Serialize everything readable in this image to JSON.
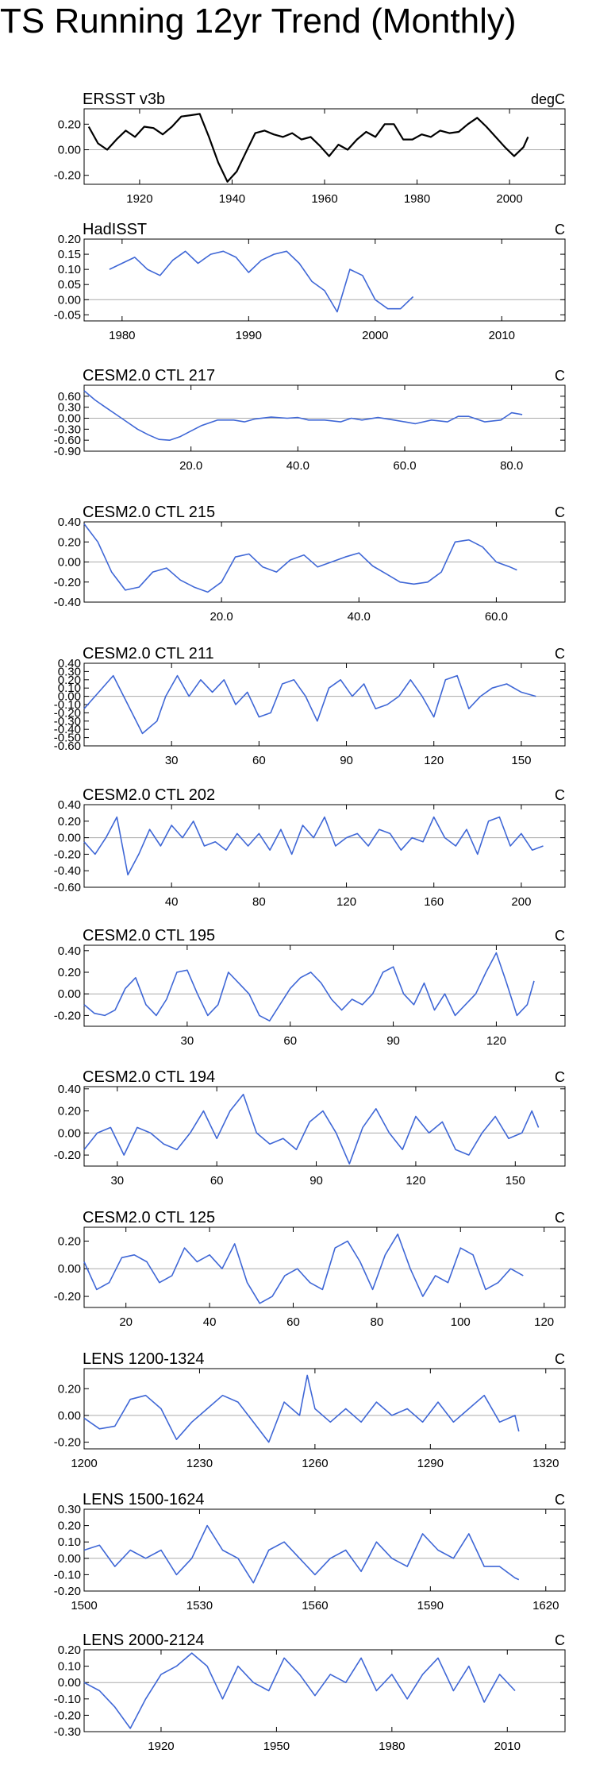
{
  "page_title": "TS Running 12yr Trend (Monthly)",
  "colors": {
    "first_series": "#000000",
    "model_series": "#3f67d6",
    "zero_line": "#aaaaaa",
    "axis": "#000000"
  },
  "chart_data": [
    {
      "type": "line",
      "title": "ERSST v3b",
      "units": "degC",
      "xlim": [
        1908,
        2012
      ],
      "ylim": [
        -0.27,
        0.32
      ],
      "xticks": [
        1920,
        1940,
        1960,
        1980,
        2000
      ],
      "xtick_labels": [
        "1920",
        "1940",
        "1960",
        "1980",
        "2000"
      ],
      "yticks": [
        0.2,
        0,
        -0.2
      ],
      "ytick_labels": [
        "0.20",
        "0.00",
        "-0.20"
      ],
      "color": "#000000",
      "x": [
        1909,
        1911,
        1913,
        1915,
        1917,
        1919,
        1921,
        1923,
        1925,
        1927,
        1929,
        1931,
        1933,
        1935,
        1937,
        1939,
        1941,
        1943,
        1945,
        1947,
        1949,
        1951,
        1953,
        1955,
        1957,
        1959,
        1961,
        1963,
        1965,
        1967,
        1969,
        1971,
        1973,
        1975,
        1977,
        1979,
        1981,
        1983,
        1985,
        1987,
        1989,
        1991,
        1993,
        1995,
        1997,
        1999,
        2001,
        2003,
        2004
      ],
      "y": [
        0.18,
        0.05,
        0.0,
        0.08,
        0.15,
        0.1,
        0.18,
        0.17,
        0.12,
        0.18,
        0.26,
        0.27,
        0.28,
        0.1,
        -0.1,
        -0.25,
        -0.17,
        -0.02,
        0.13,
        0.15,
        0.12,
        0.1,
        0.13,
        0.08,
        0.1,
        0.03,
        -0.05,
        0.04,
        0.0,
        0.08,
        0.14,
        0.1,
        0.2,
        0.2,
        0.08,
        0.08,
        0.12,
        0.1,
        0.15,
        0.13,
        0.14,
        0.2,
        0.25,
        0.18,
        0.1,
        0.02,
        -0.05,
        0.02,
        0.1
      ]
    },
    {
      "type": "line",
      "title": "HadISST",
      "units": "C",
      "xlim": [
        1977,
        2015
      ],
      "ylim": [
        -0.07,
        0.2
      ],
      "xticks": [
        1980,
        1990,
        2000,
        2010
      ],
      "xtick_labels": [
        "1980",
        "1990",
        "2000",
        "2010"
      ],
      "yticks": [
        0.2,
        0.15,
        0.1,
        0.05,
        0,
        -0.05
      ],
      "ytick_labels": [
        "0.20",
        "0.15",
        "0.10",
        "0.05",
        "0.00",
        "-0.05"
      ],
      "color": "#3f67d6",
      "x": [
        1979,
        1980,
        1981,
        1982,
        1983,
        1984,
        1985,
        1986,
        1987,
        1988,
        1989,
        1990,
        1991,
        1992,
        1993,
        1994,
        1995,
        1996,
        1997,
        1998,
        1999,
        2000,
        2001,
        2002,
        2003
      ],
      "y": [
        0.1,
        0.12,
        0.14,
        0.1,
        0.08,
        0.13,
        0.16,
        0.12,
        0.15,
        0.16,
        0.14,
        0.09,
        0.13,
        0.15,
        0.16,
        0.12,
        0.06,
        0.03,
        -0.04,
        0.1,
        0.08,
        0.0,
        -0.03,
        -0.03,
        0.01
      ]
    },
    {
      "type": "line",
      "title": "CESM2.0 CTL 217",
      "units": "C",
      "xlim": [
        0,
        90
      ],
      "ylim": [
        -0.9,
        0.9
      ],
      "xticks": [
        20,
        40,
        60,
        80
      ],
      "xtick_labels": [
        "20.0",
        "40.0",
        "60.0",
        "80.0"
      ],
      "yticks": [
        0.6,
        0.3,
        0,
        -0.3,
        -0.6,
        -0.9
      ],
      "ytick_labels": [
        "0.60",
        "0.30",
        "0.00",
        "-0.30",
        "-0.60",
        "-0.90"
      ],
      "color": "#3f67d6",
      "x": [
        0,
        2,
        4,
        6,
        8,
        10,
        12,
        14,
        16,
        18,
        20,
        22,
        25,
        28,
        30,
        32,
        35,
        38,
        40,
        42,
        45,
        48,
        50,
        52,
        55,
        58,
        60,
        62,
        65,
        68,
        70,
        72,
        75,
        78,
        80,
        82
      ],
      "y": [
        0.75,
        0.5,
        0.3,
        0.1,
        -0.1,
        -0.3,
        -0.45,
        -0.58,
        -0.6,
        -0.5,
        -0.35,
        -0.2,
        -0.05,
        -0.05,
        -0.1,
        -0.02,
        0.03,
        0.0,
        0.02,
        -0.05,
        -0.05,
        -0.1,
        0.0,
        -0.05,
        0.02,
        -0.05,
        -0.1,
        -0.15,
        -0.05,
        -0.1,
        0.05,
        0.05,
        -0.1,
        -0.05,
        0.15,
        0.1
      ]
    },
    {
      "type": "line",
      "title": "CESM2.0 CTL 215",
      "units": "C",
      "xlim": [
        0,
        70
      ],
      "ylim": [
        -0.4,
        0.4
      ],
      "xticks": [
        20,
        40,
        60
      ],
      "xtick_labels": [
        "20.0",
        "40.0",
        "60.0"
      ],
      "yticks": [
        0.4,
        0.2,
        0,
        -0.2,
        -0.4
      ],
      "ytick_labels": [
        "0.40",
        "0.20",
        "0.00",
        "-0.20",
        "-0.40"
      ],
      "color": "#3f67d6",
      "x": [
        0,
        2,
        4,
        6,
        8,
        10,
        12,
        14,
        16,
        18,
        20,
        22,
        24,
        26,
        28,
        30,
        32,
        34,
        36,
        38,
        40,
        42,
        44,
        46,
        48,
        50,
        52,
        54,
        56,
        58,
        60,
        62,
        63
      ],
      "y": [
        0.38,
        0.2,
        -0.1,
        -0.28,
        -0.25,
        -0.1,
        -0.06,
        -0.18,
        -0.25,
        -0.3,
        -0.2,
        0.05,
        0.08,
        -0.05,
        -0.1,
        0.02,
        0.07,
        -0.05,
        0.0,
        0.05,
        0.09,
        -0.04,
        -0.12,
        -0.2,
        -0.22,
        -0.2,
        -0.1,
        0.2,
        0.22,
        0.15,
        0.0,
        -0.05,
        -0.08
      ]
    },
    {
      "type": "line",
      "title": "CESM2.0 CTL 211",
      "units": "C",
      "xlim": [
        0,
        165
      ],
      "ylim": [
        -0.6,
        0.4
      ],
      "xticks": [
        30,
        60,
        90,
        120,
        150
      ],
      "xtick_labels": [
        "30",
        "60",
        "90",
        "120",
        "150"
      ],
      "yticks": [
        0.4,
        0.3,
        0.2,
        0.1,
        0,
        -0.1,
        -0.2,
        -0.3,
        -0.4,
        -0.5,
        -0.6
      ],
      "ytick_labels": [
        "0.40",
        "0.30",
        "0.20",
        "0.10",
        "0.00",
        "-0.10",
        "-0.20",
        "-0.30",
        "-0.40",
        "-0.50",
        "-0.60"
      ],
      "color": "#3f67d6",
      "x": [
        0,
        5,
        10,
        15,
        20,
        25,
        28,
        32,
        36,
        40,
        44,
        48,
        52,
        56,
        60,
        64,
        68,
        72,
        76,
        80,
        84,
        88,
        92,
        96,
        100,
        104,
        108,
        112,
        116,
        120,
        124,
        128,
        132,
        136,
        140,
        145,
        150,
        155
      ],
      "y": [
        -0.15,
        0.05,
        0.25,
        -0.1,
        -0.45,
        -0.3,
        0.0,
        0.25,
        0.0,
        0.2,
        0.05,
        0.2,
        -0.1,
        0.05,
        -0.25,
        -0.2,
        0.15,
        0.2,
        0.0,
        -0.3,
        0.1,
        0.2,
        0.0,
        0.15,
        -0.15,
        -0.1,
        0.0,
        0.2,
        0.0,
        -0.25,
        0.2,
        0.25,
        -0.15,
        0.0,
        0.1,
        0.15,
        0.05,
        0.0
      ]
    },
    {
      "type": "line",
      "title": "CESM2.0 CTL 202",
      "units": "C",
      "xlim": [
        0,
        220
      ],
      "ylim": [
        -0.6,
        0.4
      ],
      "xticks": [
        40,
        80,
        120,
        160,
        200
      ],
      "xtick_labels": [
        "40",
        "80",
        "120",
        "160",
        "200"
      ],
      "yticks": [
        0.4,
        0.2,
        0,
        -0.2,
        -0.4,
        -0.6
      ],
      "ytick_labels": [
        "0.40",
        "0.20",
        "0.00",
        "-0.20",
        "-0.40",
        "-0.60"
      ],
      "color": "#3f67d6",
      "x": [
        0,
        5,
        10,
        15,
        20,
        25,
        30,
        35,
        40,
        45,
        50,
        55,
        60,
        65,
        70,
        75,
        80,
        85,
        90,
        95,
        100,
        105,
        110,
        115,
        120,
        125,
        130,
        135,
        140,
        145,
        150,
        155,
        160,
        165,
        170,
        175,
        180,
        185,
        190,
        195,
        200,
        205,
        210
      ],
      "y": [
        -0.05,
        -0.2,
        0.0,
        0.25,
        -0.45,
        -0.2,
        0.1,
        -0.1,
        0.15,
        0.0,
        0.2,
        -0.1,
        -0.05,
        -0.15,
        0.05,
        -0.1,
        0.05,
        -0.15,
        0.1,
        -0.2,
        0.15,
        0.0,
        0.25,
        -0.1,
        0.0,
        0.05,
        -0.1,
        0.1,
        0.05,
        -0.15,
        0.0,
        -0.05,
        0.25,
        0.0,
        -0.1,
        0.1,
        -0.2,
        0.2,
        0.25,
        -0.1,
        0.05,
        -0.15,
        -0.1
      ]
    },
    {
      "type": "line",
      "title": "CESM2.0 CTL 195",
      "units": "C",
      "xlim": [
        0,
        140
      ],
      "ylim": [
        -0.3,
        0.45
      ],
      "xticks": [
        30,
        60,
        90,
        120
      ],
      "xtick_labels": [
        "30",
        "60",
        "90",
        "120"
      ],
      "yticks": [
        0.4,
        0.2,
        0,
        -0.2
      ],
      "ytick_labels": [
        "0.40",
        "0.20",
        "0.00",
        "-0.20"
      ],
      "color": "#3f67d6",
      "x": [
        0,
        3,
        6,
        9,
        12,
        15,
        18,
        21,
        24,
        27,
        30,
        33,
        36,
        39,
        42,
        45,
        48,
        51,
        54,
        57,
        60,
        63,
        66,
        69,
        72,
        75,
        78,
        81,
        84,
        87,
        90,
        93,
        96,
        99,
        102,
        105,
        108,
        111,
        114,
        117,
        120,
        123,
        126,
        129,
        131
      ],
      "y": [
        -0.1,
        -0.18,
        -0.2,
        -0.15,
        0.05,
        0.15,
        -0.1,
        -0.2,
        -0.05,
        0.2,
        0.22,
        0.0,
        -0.2,
        -0.1,
        0.2,
        0.1,
        0.0,
        -0.2,
        -0.25,
        -0.1,
        0.05,
        0.15,
        0.2,
        0.1,
        -0.05,
        -0.15,
        -0.05,
        -0.1,
        0.0,
        0.2,
        0.25,
        0.0,
        -0.1,
        0.1,
        -0.15,
        0.0,
        -0.2,
        -0.1,
        0.0,
        0.2,
        0.38,
        0.1,
        -0.2,
        -0.1,
        0.12
      ]
    },
    {
      "type": "line",
      "title": "CESM2.0 CTL 194",
      "units": "C",
      "xlim": [
        20,
        165
      ],
      "ylim": [
        -0.3,
        0.42
      ],
      "xticks": [
        30,
        60,
        90,
        120,
        150
      ],
      "xtick_labels": [
        "30",
        "60",
        "90",
        "120",
        "150"
      ],
      "yticks": [
        0.4,
        0.2,
        0,
        -0.2
      ],
      "ytick_labels": [
        "0.40",
        "0.20",
        "0.00",
        "-0.20"
      ],
      "color": "#3f67d6",
      "x": [
        20,
        24,
        28,
        32,
        36,
        40,
        44,
        48,
        52,
        56,
        60,
        64,
        68,
        72,
        76,
        80,
        84,
        88,
        92,
        96,
        100,
        104,
        108,
        112,
        116,
        120,
        124,
        128,
        132,
        136,
        140,
        144,
        148,
        152,
        155,
        157
      ],
      "y": [
        -0.15,
        0.0,
        0.05,
        -0.2,
        0.05,
        0.0,
        -0.1,
        -0.15,
        0.0,
        0.2,
        -0.05,
        0.2,
        0.35,
        0.0,
        -0.1,
        -0.05,
        -0.15,
        0.1,
        0.2,
        0.0,
        -0.28,
        0.05,
        0.22,
        0.0,
        -0.15,
        0.15,
        0.0,
        0.1,
        -0.15,
        -0.2,
        0.0,
        0.15,
        -0.05,
        0.0,
        0.2,
        0.05
      ]
    },
    {
      "type": "line",
      "title": "CESM2.0 CTL 125",
      "units": "C",
      "xlim": [
        10,
        125
      ],
      "ylim": [
        -0.28,
        0.3
      ],
      "xticks": [
        20,
        40,
        60,
        80,
        100,
        120
      ],
      "xtick_labels": [
        "20",
        "40",
        "60",
        "80",
        "100",
        "120"
      ],
      "yticks": [
        0.2,
        0,
        -0.2
      ],
      "ytick_labels": [
        "0.20",
        "0.00",
        "-0.20"
      ],
      "color": "#3f67d6",
      "x": [
        10,
        13,
        16,
        19,
        22,
        25,
        28,
        31,
        34,
        37,
        40,
        43,
        46,
        49,
        52,
        55,
        58,
        61,
        64,
        67,
        70,
        73,
        76,
        79,
        82,
        85,
        88,
        91,
        94,
        97,
        100,
        103,
        106,
        109,
        112,
        115
      ],
      "y": [
        0.05,
        -0.15,
        -0.1,
        0.08,
        0.1,
        0.05,
        -0.1,
        -0.05,
        0.15,
        0.05,
        0.1,
        0.0,
        0.18,
        -0.1,
        -0.25,
        -0.2,
        -0.05,
        0.0,
        -0.1,
        -0.15,
        0.15,
        0.2,
        0.05,
        -0.15,
        0.1,
        0.25,
        0.0,
        -0.2,
        -0.05,
        -0.1,
        0.15,
        0.1,
        -0.15,
        -0.1,
        0.0,
        -0.05
      ]
    },
    {
      "type": "line",
      "title": "LENS 1200-1324",
      "units": "C",
      "xlim": [
        1200,
        1325
      ],
      "ylim": [
        -0.25,
        0.35
      ],
      "xticks": [
        1200,
        1230,
        1260,
        1290,
        1320
      ],
      "xtick_labels": [
        "1200",
        "1230",
        "1260",
        "1290",
        "1320"
      ],
      "yticks": [
        0.2,
        0,
        -0.2
      ],
      "ytick_labels": [
        "0.20",
        "0.00",
        "-0.20"
      ],
      "color": "#3f67d6",
      "x": [
        1200,
        1204,
        1208,
        1212,
        1216,
        1220,
        1224,
        1228,
        1232,
        1236,
        1240,
        1244,
        1248,
        1252,
        1256,
        1258,
        1260,
        1264,
        1268,
        1272,
        1276,
        1280,
        1284,
        1288,
        1292,
        1296,
        1300,
        1304,
        1308,
        1312,
        1313
      ],
      "y": [
        -0.02,
        -0.1,
        -0.08,
        0.12,
        0.15,
        0.05,
        -0.18,
        -0.05,
        0.05,
        0.15,
        0.1,
        -0.05,
        -0.2,
        0.1,
        0.0,
        0.3,
        0.05,
        -0.05,
        0.05,
        -0.05,
        0.1,
        0.0,
        0.05,
        -0.05,
        0.1,
        -0.05,
        0.05,
        0.15,
        -0.05,
        0.0,
        -0.12
      ]
    },
    {
      "type": "line",
      "title": "LENS 1500-1624",
      "units": "C",
      "xlim": [
        1500,
        1625
      ],
      "ylim": [
        -0.2,
        0.3
      ],
      "xticks": [
        1500,
        1530,
        1560,
        1590,
        1620
      ],
      "xtick_labels": [
        "1500",
        "1530",
        "1560",
        "1590",
        "1620"
      ],
      "yticks": [
        0.3,
        0.2,
        0.1,
        0,
        -0.1,
        -0.2
      ],
      "ytick_labels": [
        "0.30",
        "0.20",
        "0.10",
        "0.00",
        "-0.10",
        "-0.20"
      ],
      "color": "#3f67d6",
      "x": [
        1500,
        1504,
        1508,
        1512,
        1516,
        1520,
        1524,
        1528,
        1532,
        1536,
        1540,
        1544,
        1548,
        1552,
        1556,
        1560,
        1564,
        1568,
        1572,
        1576,
        1580,
        1584,
        1588,
        1592,
        1596,
        1600,
        1604,
        1608,
        1612,
        1613
      ],
      "y": [
        0.05,
        0.08,
        -0.05,
        0.05,
        0.0,
        0.05,
        -0.1,
        0.0,
        0.2,
        0.05,
        0.0,
        -0.15,
        0.05,
        0.1,
        0.0,
        -0.1,
        0.0,
        0.05,
        -0.08,
        0.1,
        0.0,
        -0.05,
        0.15,
        0.05,
        0.0,
        0.15,
        -0.05,
        -0.05,
        -0.12,
        -0.13
      ]
    },
    {
      "type": "line",
      "title": "LENS 2000-2124",
      "units": "C",
      "xlim": [
        1900,
        2025
      ],
      "ylim": [
        -0.3,
        0.2
      ],
      "xticks": [
        1920,
        1950,
        1980,
        2010
      ],
      "xtick_labels": [
        "1920",
        "1950",
        "1980",
        "2010"
      ],
      "yticks": [
        0.2,
        0.1,
        0,
        -0.1,
        -0.2,
        -0.3
      ],
      "ytick_labels": [
        "0.20",
        "0.10",
        "0.00",
        "-0.10",
        "-0.20",
        "-0.30"
      ],
      "color": "#3f67d6",
      "x": [
        1900,
        1904,
        1908,
        1912,
        1916,
        1920,
        1924,
        1928,
        1932,
        1936,
        1940,
        1944,
        1948,
        1952,
        1956,
        1960,
        1964,
        1968,
        1972,
        1976,
        1980,
        1984,
        1988,
        1992,
        1996,
        2000,
        2004,
        2008,
        2012
      ],
      "y": [
        0.0,
        -0.05,
        -0.15,
        -0.28,
        -0.1,
        0.05,
        0.1,
        0.18,
        0.1,
        -0.1,
        0.1,
        0.0,
        -0.05,
        0.15,
        0.05,
        -0.08,
        0.05,
        0.0,
        0.15,
        -0.05,
        0.05,
        -0.1,
        0.05,
        0.15,
        -0.05,
        0.1,
        -0.12,
        0.05,
        -0.05
      ]
    }
  ]
}
